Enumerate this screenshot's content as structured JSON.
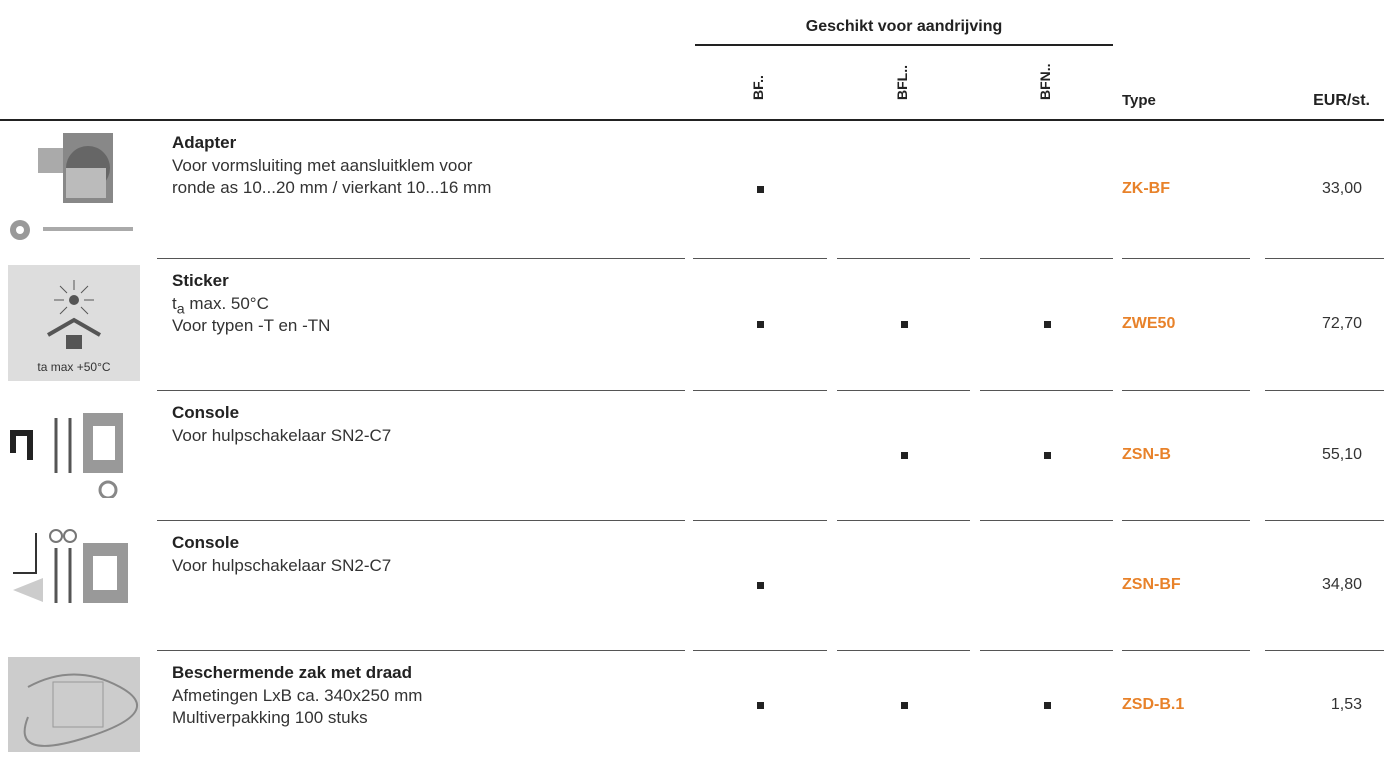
{
  "header": {
    "group": "Geschikt voor aandrijving",
    "columns": [
      "BF..",
      "BFL..",
      "BFN.."
    ],
    "type": "Type",
    "price": "EUR/st."
  },
  "rows": [
    {
      "title": "Adapter",
      "lines": [
        "Voor vormsluiting met aansluitklem voor",
        "ronde as 10...20 mm / vierkant 10...16 mm"
      ],
      "fits": [
        true,
        false,
        false
      ],
      "type": "ZK-BF",
      "price": "33,00"
    },
    {
      "title": "Sticker",
      "lines": [
        {
          "main": "t",
          "sub": "a",
          "tail": " max. 50°C"
        },
        "Voor typen -T en -TN"
      ],
      "image_text": "ta max +50°C",
      "fits": [
        true,
        true,
        true
      ],
      "type": "ZWE50",
      "price": "72,70"
    },
    {
      "title": "Console",
      "lines": [
        "Voor hulpschakelaar SN2-C7"
      ],
      "fits": [
        false,
        true,
        true
      ],
      "type": "ZSN-B",
      "price": "55,10"
    },
    {
      "title": "Console",
      "lines": [
        "Voor hulpschakelaar SN2-C7"
      ],
      "fits": [
        true,
        false,
        false
      ],
      "type": "ZSN-BF",
      "price": "34,80"
    },
    {
      "title": "Beschermende zak met draad",
      "lines": [
        "Afmetingen LxB ca. 340x250 mm",
        "Multiverpakking 100 stuks"
      ],
      "fits": [
        true,
        true,
        true
      ],
      "type": "ZSD-B.1",
      "price": "1,53"
    }
  ]
}
